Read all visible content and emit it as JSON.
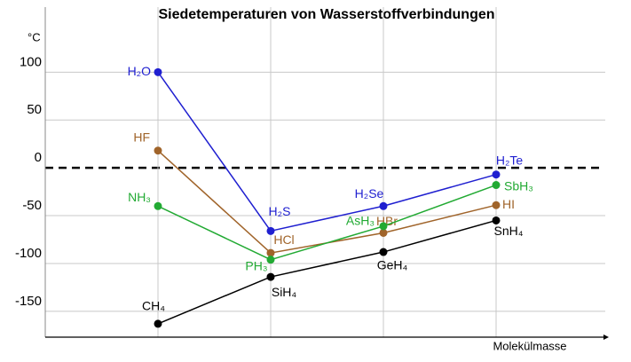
{
  "chart_data": {
    "type": "line",
    "title": "Siedetemperaturen von Wasserstoffverbindungen",
    "y_label": "°C",
    "x_label": "Molekülmasse",
    "categories": [
      null,
      null,
      null,
      null
    ],
    "ylim": [
      -177,
      168
    ],
    "yticks": [
      100,
      50,
      0,
      -50,
      -100,
      -150
    ],
    "grid": true,
    "zero_line": true,
    "series": [
      {
        "color": "#1f1fd0",
        "labels": [
          "H₂O",
          "H₂S",
          "H₂Se",
          "H₂Te"
        ],
        "values": [
          100,
          -66,
          -40,
          -7
        ]
      },
      {
        "color": "#a0642a",
        "labels": [
          "HF",
          "HCl",
          "HBr",
          "HI"
        ],
        "values": [
          18,
          -89,
          -68,
          -39
        ]
      },
      {
        "color": "#22aa33",
        "labels": [
          "NH₃",
          "PH₃",
          "AsH₃",
          "SbH₃"
        ],
        "values": [
          -40,
          -96,
          -61,
          -18
        ]
      },
      {
        "color": "#000000",
        "labels": [
          "CH₄",
          "SiH₄",
          "GeH₄",
          "SnH₄"
        ],
        "values": [
          -163,
          -114,
          -88,
          -55
        ]
      }
    ]
  }
}
